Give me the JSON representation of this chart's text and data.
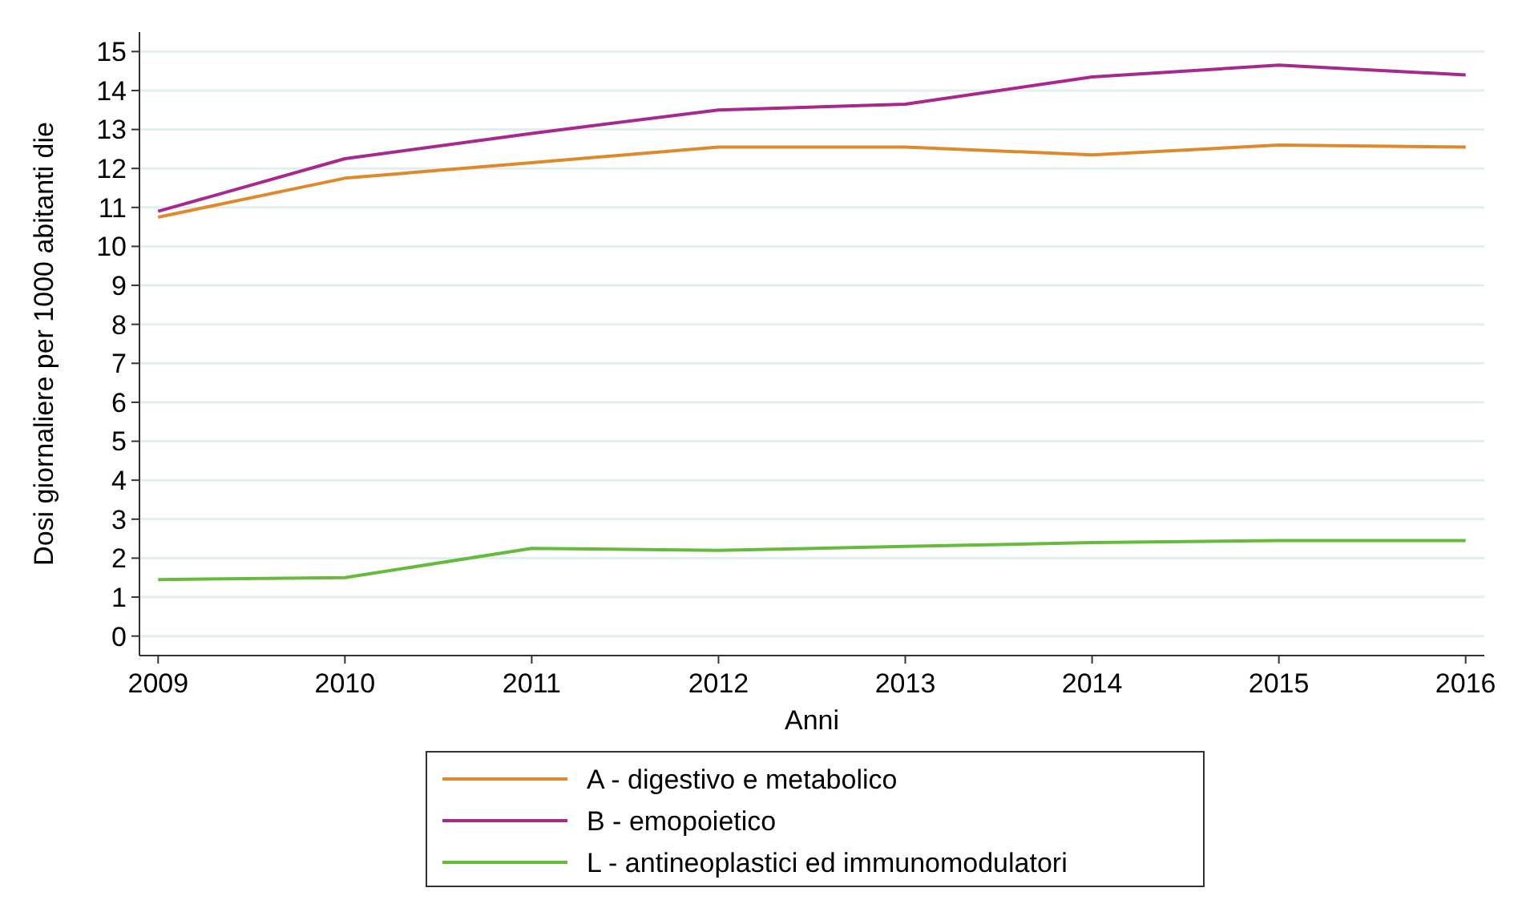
{
  "chart_data": {
    "type": "line",
    "xlabel": "Anni",
    "ylabel": "Dosi giornaliere per 1000 abitanti die",
    "x": [
      2009,
      2010,
      2011,
      2012,
      2013,
      2014,
      2015,
      2016
    ],
    "xlim": [
      2008.9,
      2016.1
    ],
    "xticks": [
      2009,
      2010,
      2011,
      2012,
      2013,
      2014,
      2015,
      2016
    ],
    "ylim": [
      -0.5,
      15.5
    ],
    "yticks": [
      0,
      1,
      2,
      3,
      4,
      5,
      6,
      7,
      8,
      9,
      10,
      11,
      12,
      13,
      14,
      15
    ],
    "grid": "y",
    "legend": "bottom",
    "marker": "none",
    "line_style": "solid",
    "series": [
      {
        "name": "A - digestivo e metabolico",
        "color": "#e0892a",
        "values": [
          10.75,
          11.75,
          12.15,
          12.55,
          12.55,
          12.35,
          12.6,
          12.55
        ]
      },
      {
        "name": "B - emopoietico",
        "color": "#a8288f",
        "values": [
          10.9,
          12.25,
          12.9,
          13.5,
          13.65,
          14.35,
          14.65,
          14.4
        ]
      },
      {
        "name": "L - antineoplastici ed immunomodulatori",
        "color": "#66bb3c",
        "values": [
          1.45,
          1.5,
          2.25,
          2.2,
          2.3,
          2.4,
          2.45,
          2.45
        ]
      }
    ]
  }
}
